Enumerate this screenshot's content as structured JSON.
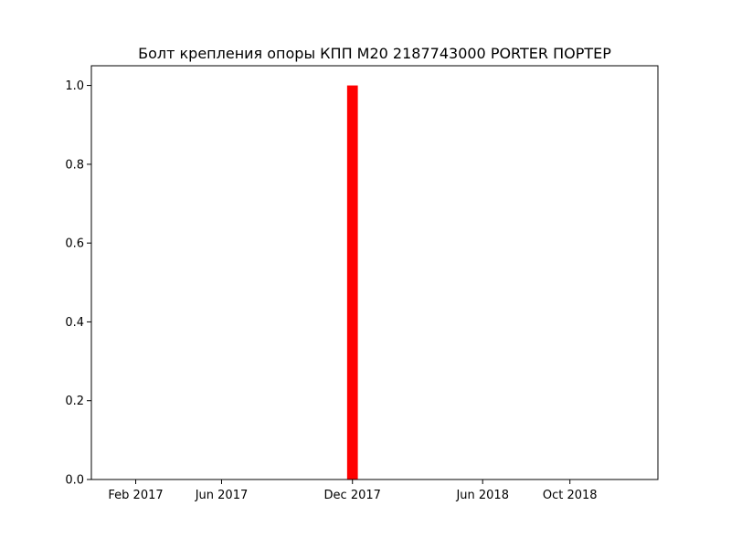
{
  "chart_data": {
    "type": "bar",
    "title": "Болт крепления опоры КПП M20 2187743000 PORTER ПОРТЕР",
    "xlabel": "",
    "ylabel": "",
    "x_axis_type": "date",
    "xlim": [
      "2016-12-01",
      "2019-02-01"
    ],
    "ylim": [
      0,
      1.05
    ],
    "x_ticks": [
      {
        "date": "2017-02-01",
        "label": "Feb 2017"
      },
      {
        "date": "2017-06-01",
        "label": "Jun 2017"
      },
      {
        "date": "2017-12-01",
        "label": "Dec 2017"
      },
      {
        "date": "2018-06-01",
        "label": "Jun 2018"
      },
      {
        "date": "2018-10-01",
        "label": "Oct 2018"
      }
    ],
    "y_ticks": [
      {
        "value": 0.0,
        "label": "0.0"
      },
      {
        "value": 0.2,
        "label": "0.2"
      },
      {
        "value": 0.4,
        "label": "0.4"
      },
      {
        "value": 0.6,
        "label": "0.6"
      },
      {
        "value": 0.8,
        "label": "0.8"
      },
      {
        "value": 1.0,
        "label": "1.0"
      }
    ],
    "bars": [
      {
        "date": "2017-12-01",
        "value": 1.0
      }
    ],
    "bar_width_days": 15,
    "bar_color": "#ff0000",
    "grid": false,
    "legend": false
  }
}
